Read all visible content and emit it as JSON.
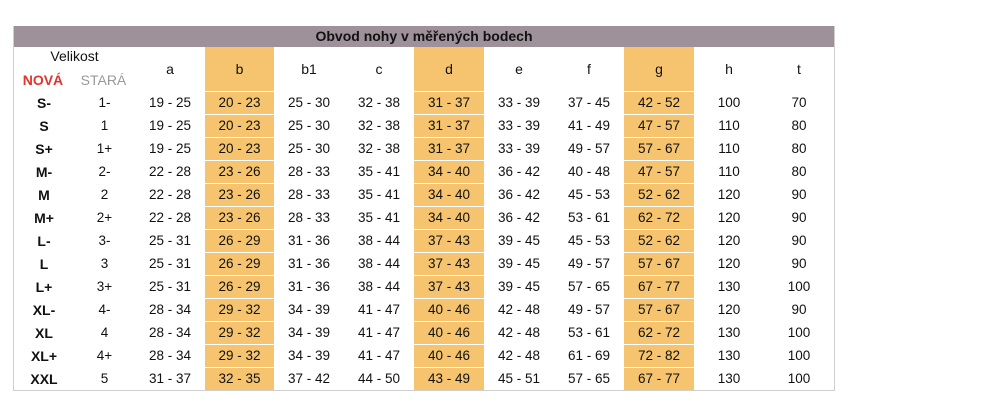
{
  "title": "Obvod nohy v měřených bodech",
  "header": {
    "velikost": "Velikost",
    "nova": "NOVÁ",
    "stara": "STARÁ",
    "columns": [
      "a",
      "b",
      "b1",
      "c",
      "d",
      "e",
      "f",
      "g",
      "h",
      "t"
    ]
  },
  "highlight_color": "#f6c46e",
  "highlighted_columns": [
    "b",
    "d",
    "g"
  ],
  "rows": [
    [
      "S-",
      "1-",
      "19 - 25",
      "20 - 23",
      "25 - 30",
      "32 - 38",
      "31 - 37",
      "33 - 39",
      "37 - 45",
      "42 - 52",
      "100",
      "70"
    ],
    [
      "S",
      "1",
      "19 - 25",
      "20 - 23",
      "25 - 30",
      "32 - 38",
      "31 - 37",
      "33 - 39",
      "41 - 49",
      "47 - 57",
      "110",
      "80"
    ],
    [
      "S+",
      "1+",
      "19 - 25",
      "20 - 23",
      "25 - 30",
      "32 - 38",
      "31 - 37",
      "33 - 39",
      "49 - 57",
      "57 - 67",
      "110",
      "80"
    ],
    [
      "M-",
      "2-",
      "22 - 28",
      "23 - 26",
      "28 - 33",
      "35 - 41",
      "34 - 40",
      "36 - 42",
      "40 - 48",
      "47 - 57",
      "110",
      "80"
    ],
    [
      "M",
      "2",
      "22 - 28",
      "23 - 26",
      "28 - 33",
      "35 - 41",
      "34 - 40",
      "36 - 42",
      "45 - 53",
      "52 - 62",
      "120",
      "90"
    ],
    [
      "M+",
      "2+",
      "22 - 28",
      "23 - 26",
      "28 - 33",
      "35 - 41",
      "34 - 40",
      "36 - 42",
      "53 - 61",
      "62 - 72",
      "120",
      "90"
    ],
    [
      "L-",
      "3-",
      "25 - 31",
      "26 - 29",
      "31 - 36",
      "38 - 44",
      "37 - 43",
      "39 - 45",
      "45 - 53",
      "52 - 62",
      "120",
      "90"
    ],
    [
      "L",
      "3",
      "25 - 31",
      "26 - 29",
      "31 - 36",
      "38 - 44",
      "37 - 43",
      "39 - 45",
      "49 - 57",
      "57 - 67",
      "120",
      "90"
    ],
    [
      "L+",
      "3+",
      "25 - 31",
      "26 - 29",
      "31 - 36",
      "38 - 44",
      "37 - 43",
      "39 - 45",
      "57 - 65",
      "67 - 77",
      "130",
      "100"
    ],
    [
      "XL-",
      "4-",
      "28 - 34",
      "29 - 32",
      "34 - 39",
      "41 - 47",
      "40 - 46",
      "42 - 48",
      "49 - 57",
      "57 - 67",
      "120",
      "90"
    ],
    [
      "XL",
      "4",
      "28 - 34",
      "29 - 32",
      "34 - 39",
      "41 - 47",
      "40 - 46",
      "42 - 48",
      "53 - 61",
      "62 - 72",
      "130",
      "100"
    ],
    [
      "XL+",
      "4+",
      "28 - 34",
      "29 - 32",
      "34 - 39",
      "41 - 47",
      "40 - 46",
      "42 - 48",
      "61 - 69",
      "72 - 82",
      "130",
      "100"
    ],
    [
      "XXL",
      "5",
      "31 - 37",
      "32 - 35",
      "37 - 42",
      "44 - 50",
      "43 - 49",
      "45 - 51",
      "57 - 65",
      "67 - 77",
      "130",
      "100"
    ]
  ]
}
